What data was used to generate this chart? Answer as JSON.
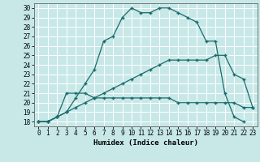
{
  "xlabel": "Humidex (Indice chaleur)",
  "bg_color": "#c8e8e8",
  "line_color": "#1a6b6b",
  "xlim": [
    -0.5,
    23.5
  ],
  "ylim": [
    17.5,
    30.5
  ],
  "xticks": [
    0,
    1,
    2,
    3,
    4,
    5,
    6,
    7,
    8,
    9,
    10,
    11,
    12,
    13,
    14,
    15,
    16,
    17,
    18,
    19,
    20,
    21,
    22,
    23
  ],
  "yticks": [
    18,
    19,
    20,
    21,
    22,
    23,
    24,
    25,
    26,
    27,
    28,
    29,
    30
  ],
  "curve1_x": [
    0,
    1,
    2,
    3,
    4,
    5,
    6,
    7,
    8,
    9,
    10,
    11,
    12,
    13,
    14,
    15,
    16,
    17,
    18,
    19,
    20,
    21,
    22
  ],
  "curve1_y": [
    18.0,
    18.0,
    18.5,
    19.0,
    20.5,
    22.0,
    23.5,
    26.5,
    27.0,
    29.0,
    30.0,
    29.5,
    29.5,
    30.0,
    30.0,
    29.5,
    29.0,
    28.5,
    26.5,
    26.5,
    21.0,
    18.5,
    18.0
  ],
  "curve2_x": [
    0,
    1,
    2,
    3,
    4,
    5,
    6,
    7,
    8,
    9,
    10,
    11,
    12,
    13,
    14,
    15,
    16,
    17,
    18,
    19,
    20,
    21,
    22,
    23
  ],
  "curve2_y": [
    18.0,
    18.0,
    18.5,
    21.0,
    21.0,
    21.0,
    20.5,
    20.5,
    20.5,
    20.5,
    20.5,
    20.5,
    20.5,
    20.5,
    20.5,
    20.0,
    20.0,
    20.0,
    20.0,
    20.0,
    20.0,
    20.0,
    19.5,
    19.5
  ],
  "curve3_x": [
    0,
    1,
    2,
    3,
    4,
    5,
    6,
    7,
    8,
    9,
    10,
    11,
    12,
    13,
    14,
    15,
    16,
    17,
    18,
    19,
    20,
    21,
    22,
    23
  ],
  "curve3_y": [
    18.0,
    18.0,
    18.5,
    19.0,
    19.5,
    20.0,
    20.5,
    21.0,
    21.5,
    22.0,
    22.5,
    23.0,
    23.5,
    24.0,
    24.5,
    24.5,
    24.5,
    24.5,
    24.5,
    25.0,
    25.0,
    23.0,
    22.5,
    19.5
  ],
  "xlabel_fontsize": 6.5,
  "tick_fontsize": 5.5
}
